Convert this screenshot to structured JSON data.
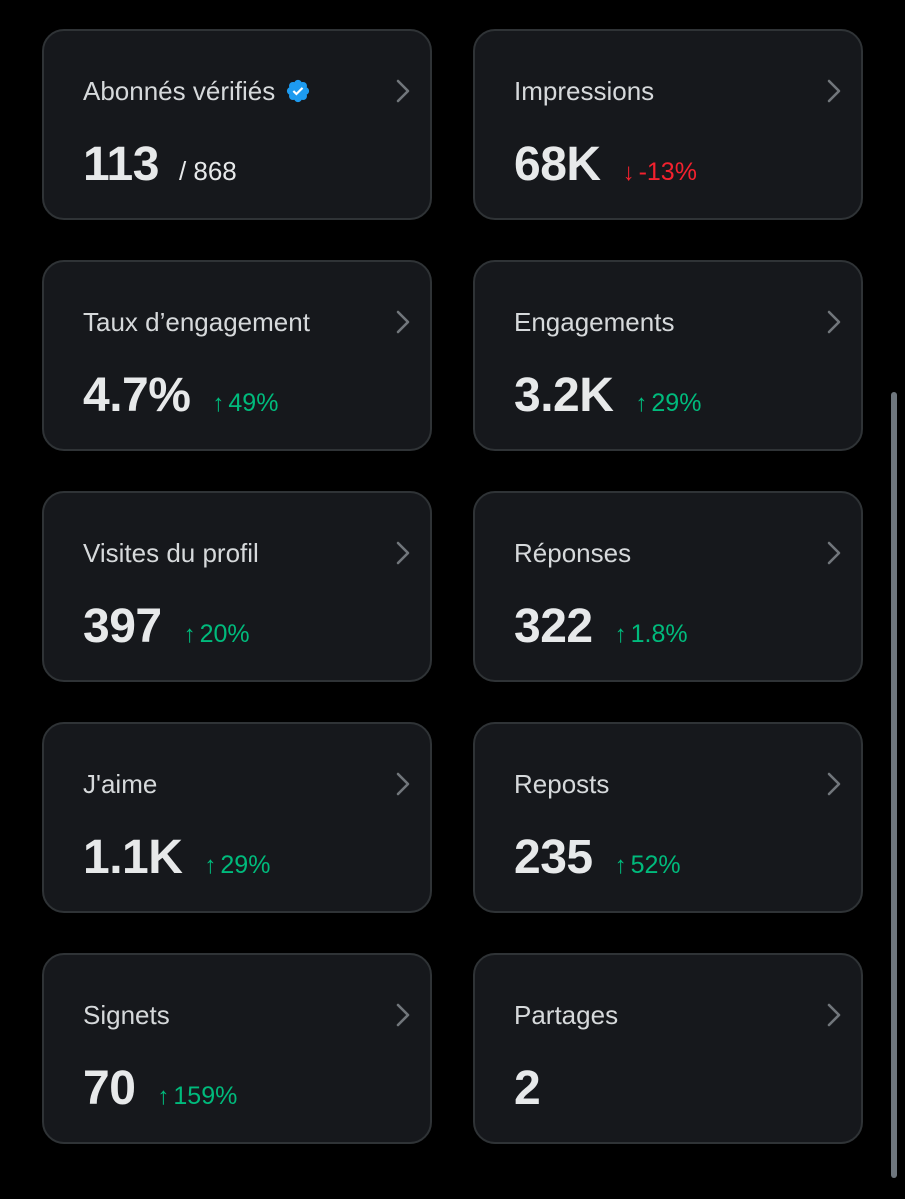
{
  "colors": {
    "background": "#000000",
    "card": "#16181c",
    "border": "#2f3336",
    "text": "#e7e9ea",
    "up": "#00ba7c",
    "down": "#f4212e",
    "verified": "#1d9bf0"
  },
  "cards": [
    {
      "title": "Abonnés vérifiés",
      "value": "113",
      "sub": "/ 868",
      "delta": "",
      "direction": ""
    },
    {
      "title": "Impressions",
      "value": "68K",
      "sub": "",
      "delta": "-13%",
      "direction": "down"
    },
    {
      "title": "Taux d’engagement",
      "value": "4.7%",
      "sub": "",
      "delta": "49%",
      "direction": "up"
    },
    {
      "title": "Engagements",
      "value": "3.2K",
      "sub": "",
      "delta": "29%",
      "direction": "up"
    },
    {
      "title": "Visites du profil",
      "value": "397",
      "sub": "",
      "delta": "20%",
      "direction": "up"
    },
    {
      "title": "Réponses",
      "value": "322",
      "sub": "",
      "delta": "1.8%",
      "direction": "up"
    },
    {
      "title": "J'aime",
      "value": "1.1K",
      "sub": "",
      "delta": "29%",
      "direction": "up"
    },
    {
      "title": "Reposts",
      "value": "235",
      "sub": "",
      "delta": "52%",
      "direction": "up"
    },
    {
      "title": "Signets",
      "value": "70",
      "sub": "",
      "delta": "159%",
      "direction": "up"
    },
    {
      "title": "Partages",
      "value": "2",
      "sub": "",
      "delta": "",
      "direction": ""
    }
  ],
  "icons": {
    "verified": "verified-badge-icon",
    "chevron": "chevron-right-icon",
    "up": "arrow-up-icon",
    "down": "arrow-down-icon"
  }
}
